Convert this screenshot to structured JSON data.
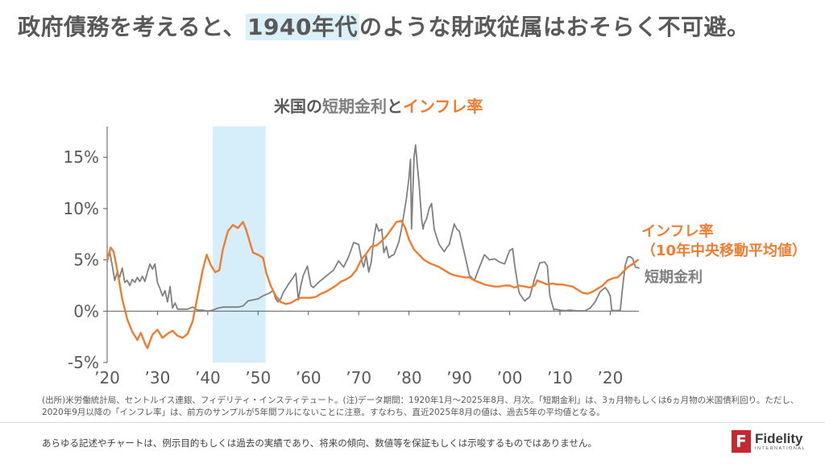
{
  "headline": {
    "prefix": "政府債務を考えると、",
    "highlight": "1940年代",
    "suffix": "のような財政従属はおそらく不可避。"
  },
  "chart_title": {
    "part1": "米国の",
    "part2": "短期金利",
    "part3": "と",
    "part4": "インフレ率"
  },
  "legend": {
    "inflation_line1": "インフレ率",
    "inflation_line2": "（10年中央移動平均値）",
    "short_rate": "短期金利"
  },
  "notes": "(出所)米労働統計局、セントルイス連銀、フィデリティ・インスティテュート。(注)データ期間：1920年1月～2025年8月、月次。「短期金利」は、3ヵ月物もしくは6ヵ月物の米国債利回り。ただし、2020年9月以降の「インフレ率」は、前方のサンプルが5年間フルにないことに注意。すなわち、直近2025年8月の値は、過去5年の平均値となる。",
  "disclaimer": "あらゆる記述やチャートは、例示目的もしくは過去の実績であり、将来の傾向、数値等を保証もしくは示唆するものではありません。",
  "logo": {
    "word": "Fidelity",
    "sub": "INTERNATIONAL",
    "mark": "F"
  },
  "colors": {
    "inflation": "#ed7d31",
    "short_rate": "#808080",
    "highlight": "#d6eefa",
    "axis": "#595959"
  },
  "chart_data": {
    "type": "line",
    "xlim": [
      1920,
      2025.7
    ],
    "ylim": [
      -5,
      18
    ],
    "y_ticks": [
      -5,
      0,
      5,
      10,
      15
    ],
    "y_tick_labels": [
      "-5%",
      "0%",
      "5%",
      "10%",
      "15%"
    ],
    "x_ticks": [
      1920,
      1930,
      1940,
      1950,
      1960,
      1970,
      1980,
      1990,
      2000,
      2010,
      2020
    ],
    "x_tick_labels": [
      "’20",
      "’30",
      "’40",
      "’50",
      "’60",
      "’70",
      "’80",
      "’90",
      "’00",
      "’10",
      "’20"
    ],
    "highlight_band": [
      1941,
      1951.5
    ],
    "series": [
      {
        "name": "インフレ率（10年中央移動平均値）",
        "color": "#ed7d31",
        "points": [
          [
            1920,
            5.0
          ],
          [
            1920.7,
            6.2
          ],
          [
            1921.3,
            5.8
          ],
          [
            1922,
            4.0
          ],
          [
            1923,
            1.2
          ],
          [
            1924,
            -0.8
          ],
          [
            1925,
            -2.0
          ],
          [
            1926,
            -2.8
          ],
          [
            1926.7,
            -2.1
          ],
          [
            1927.5,
            -3.1
          ],
          [
            1928,
            -3.6
          ],
          [
            1929,
            -2.3
          ],
          [
            1930,
            -1.8
          ],
          [
            1931,
            -2.6
          ],
          [
            1932,
            -2.2
          ],
          [
            1933,
            -1.9
          ],
          [
            1934,
            -2.4
          ],
          [
            1935,
            -2.6
          ],
          [
            1936,
            -2.2
          ],
          [
            1937,
            -1.0
          ],
          [
            1938,
            1.5
          ],
          [
            1939,
            4.0
          ],
          [
            1939.8,
            5.5
          ],
          [
            1940.6,
            4.5
          ],
          [
            1941.5,
            3.8
          ],
          [
            1942.3,
            4.0
          ],
          [
            1943,
            6.0
          ],
          [
            1944,
            7.8
          ],
          [
            1945,
            8.4
          ],
          [
            1946,
            8.1
          ],
          [
            1947,
            8.7
          ],
          [
            1947.6,
            8.0
          ],
          [
            1948.5,
            6.5
          ],
          [
            1949,
            5.7
          ],
          [
            1950,
            5.5
          ],
          [
            1951,
            5.2
          ],
          [
            1951.6,
            3.8
          ],
          [
            1952.5,
            2.5
          ],
          [
            1953.5,
            1.5
          ],
          [
            1954.5,
            0.9
          ],
          [
            1955.5,
            0.7
          ],
          [
            1956.5,
            0.8
          ],
          [
            1957.5,
            1.1
          ],
          [
            1958.5,
            1.3
          ],
          [
            1959.5,
            1.3
          ],
          [
            1960.5,
            1.3
          ],
          [
            1961.5,
            1.4
          ],
          [
            1962.5,
            1.7
          ],
          [
            1963.5,
            1.9
          ],
          [
            1964.5,
            2.2
          ],
          [
            1965.5,
            2.5
          ],
          [
            1966.5,
            2.9
          ],
          [
            1967.5,
            3.1
          ],
          [
            1968.5,
            3.4
          ],
          [
            1969.5,
            4.0
          ],
          [
            1970.5,
            5.0
          ],
          [
            1971.5,
            5.6
          ],
          [
            1972.5,
            6.3
          ],
          [
            1973.5,
            6.4
          ],
          [
            1974.5,
            6.8
          ],
          [
            1975.5,
            7.3
          ],
          [
            1976.5,
            8.0
          ],
          [
            1977.5,
            8.7
          ],
          [
            1978.5,
            8.8
          ],
          [
            1979.2,
            8.2
          ],
          [
            1980,
            7.0
          ],
          [
            1981,
            6.0
          ],
          [
            1982,
            5.5
          ],
          [
            1983,
            5.0
          ],
          [
            1984,
            4.7
          ],
          [
            1985,
            4.5
          ],
          [
            1986,
            4.3
          ],
          [
            1987,
            4.0
          ],
          [
            1988,
            3.7
          ],
          [
            1989,
            3.5
          ],
          [
            1990,
            3.4
          ],
          [
            1991,
            3.3
          ],
          [
            1992,
            3.3
          ],
          [
            1993,
            3.0
          ],
          [
            1994,
            2.8
          ],
          [
            1995,
            2.6
          ],
          [
            1996,
            2.5
          ],
          [
            1997,
            2.4
          ],
          [
            1998,
            2.4
          ],
          [
            1999,
            2.5
          ],
          [
            2000,
            2.5
          ],
          [
            2001,
            2.3
          ],
          [
            2002,
            2.5
          ],
          [
            2003,
            2.4
          ],
          [
            2004,
            2.3
          ],
          [
            2005,
            2.5
          ],
          [
            2005.5,
            3.0
          ],
          [
            2006.5,
            2.8
          ],
          [
            2007.5,
            2.6
          ],
          [
            2008.5,
            2.7
          ],
          [
            2009.5,
            2.6
          ],
          [
            2010.5,
            2.6
          ],
          [
            2011.5,
            2.5
          ],
          [
            2012.5,
            2.4
          ],
          [
            2013.5,
            2.1
          ],
          [
            2014.5,
            1.8
          ],
          [
            2015.5,
            1.7
          ],
          [
            2016.5,
            1.9
          ],
          [
            2017.5,
            2.2
          ],
          [
            2018.5,
            2.5
          ],
          [
            2019.5,
            3.0
          ],
          [
            2020.5,
            3.2
          ],
          [
            2021.5,
            3.3
          ],
          [
            2022.5,
            3.8
          ],
          [
            2023.5,
            4.3
          ],
          [
            2024.5,
            4.6
          ],
          [
            2025.5,
            5.0
          ]
        ]
      },
      {
        "name": "短期金利",
        "color": "#808080",
        "points": [
          [
            1920,
            4.8
          ],
          [
            1920.5,
            5.8
          ],
          [
            1921,
            4.5
          ],
          [
            1921.5,
            3.0
          ],
          [
            1922,
            3.8
          ],
          [
            1922.5,
            3.3
          ],
          [
            1923,
            4.2
          ],
          [
            1923.5,
            2.8
          ],
          [
            1924,
            3.0
          ],
          [
            1924.5,
            2.5
          ],
          [
            1925,
            3.1
          ],
          [
            1925.5,
            2.8
          ],
          [
            1926,
            3.3
          ],
          [
            1926.5,
            2.9
          ],
          [
            1927,
            3.4
          ],
          [
            1927.5,
            2.9
          ],
          [
            1928,
            3.8
          ],
          [
            1928.5,
            4.6
          ],
          [
            1929,
            4.1
          ],
          [
            1929.5,
            4.6
          ],
          [
            1930,
            2.8
          ],
          [
            1930.5,
            2.2
          ],
          [
            1931,
            1.5
          ],
          [
            1931.5,
            2.0
          ],
          [
            1932,
            0.9
          ],
          [
            1932.5,
            2.4
          ],
          [
            1933,
            0.3
          ],
          [
            1933.5,
            0.8
          ],
          [
            1934,
            0.2
          ],
          [
            1935,
            0.2
          ],
          [
            1936,
            0.2
          ],
          [
            1937,
            0.4
          ],
          [
            1938,
            0.1
          ],
          [
            1939,
            0.1
          ],
          [
            1940,
            0.0
          ],
          [
            1941,
            0.1
          ],
          [
            1942,
            0.3
          ],
          [
            1943,
            0.4
          ],
          [
            1944,
            0.4
          ],
          [
            1945,
            0.4
          ],
          [
            1946,
            0.4
          ],
          [
            1947,
            0.5
          ],
          [
            1948,
            1.0
          ],
          [
            1949,
            1.1
          ],
          [
            1950,
            1.2
          ],
          [
            1951,
            1.5
          ],
          [
            1952,
            1.7
          ],
          [
            1953,
            2.0
          ],
          [
            1953.5,
            1.2
          ],
          [
            1954,
            0.9
          ],
          [
            1954.5,
            1.2
          ],
          [
            1955,
            1.8
          ],
          [
            1956,
            2.6
          ],
          [
            1957,
            3.3
          ],
          [
            1957.5,
            3.7
          ],
          [
            1958,
            1.1
          ],
          [
            1958.5,
            2.5
          ],
          [
            1959,
            3.5
          ],
          [
            1959.8,
            4.4
          ],
          [
            1960.5,
            2.5
          ],
          [
            1961,
            2.3
          ],
          [
            1962,
            2.8
          ],
          [
            1963,
            3.2
          ],
          [
            1964,
            3.6
          ],
          [
            1965,
            4.0
          ],
          [
            1966,
            4.9
          ],
          [
            1967,
            4.3
          ],
          [
            1968,
            5.3
          ],
          [
            1969,
            6.7
          ],
          [
            1970,
            6.5
          ],
          [
            1970.6,
            4.9
          ],
          [
            1971,
            4.3
          ],
          [
            1971.5,
            5.4
          ],
          [
            1972,
            3.8
          ],
          [
            1972.5,
            4.8
          ],
          [
            1973,
            7.0
          ],
          [
            1973.5,
            8.5
          ],
          [
            1974,
            7.8
          ],
          [
            1974.6,
            8.0
          ],
          [
            1975,
            5.7
          ],
          [
            1975.5,
            6.3
          ],
          [
            1976,
            5.2
          ],
          [
            1976.5,
            5.4
          ],
          [
            1977,
            5.5
          ],
          [
            1977.5,
            6.1
          ],
          [
            1978,
            6.8
          ],
          [
            1978.5,
            8.0
          ],
          [
            1979,
            9.5
          ],
          [
            1979.5,
            11.0
          ],
          [
            1980,
            13.0
          ],
          [
            1980.3,
            14.8
          ],
          [
            1980.5,
            8.0
          ],
          [
            1980.8,
            12.0
          ],
          [
            1981,
            15.0
          ],
          [
            1981.3,
            16.2
          ],
          [
            1981.6,
            14.5
          ],
          [
            1982,
            12.5
          ],
          [
            1982.5,
            9.0
          ],
          [
            1982.8,
            8.0
          ],
          [
            1983,
            8.5
          ],
          [
            1983.5,
            9.0
          ],
          [
            1984,
            10.0
          ],
          [
            1984.5,
            10.5
          ],
          [
            1985,
            8.0
          ],
          [
            1985.5,
            7.2
          ],
          [
            1986,
            6.5
          ],
          [
            1987,
            5.8
          ],
          [
            1987.5,
            6.2
          ],
          [
            1988,
            6.5
          ],
          [
            1989,
            8.5
          ],
          [
            1989.5,
            8.0
          ],
          [
            1990,
            7.8
          ],
          [
            1991,
            5.7
          ],
          [
            1992,
            3.5
          ],
          [
            1993,
            3.0
          ],
          [
            1994,
            4.3
          ],
          [
            1995,
            5.5
          ],
          [
            1996,
            5.0
          ],
          [
            1997,
            5.1
          ],
          [
            1998,
            4.8
          ],
          [
            1999,
            4.6
          ],
          [
            2000,
            5.9
          ],
          [
            2000.6,
            6.1
          ],
          [
            2001,
            4.5
          ],
          [
            2001.8,
            2.0
          ],
          [
            2002,
            1.7
          ],
          [
            2003,
            1.0
          ],
          [
            2004,
            1.4
          ],
          [
            2005,
            3.2
          ],
          [
            2006,
            4.7
          ],
          [
            2007,
            4.8
          ],
          [
            2007.5,
            4.4
          ],
          [
            2008,
            1.5
          ],
          [
            2008.8,
            0.1
          ],
          [
            2009,
            0.2
          ],
          [
            2010,
            0.1
          ],
          [
            2011,
            0.05
          ],
          [
            2012,
            0.1
          ],
          [
            2013,
            0.05
          ],
          [
            2014,
            0.03
          ],
          [
            2015,
            0.05
          ],
          [
            2016,
            0.3
          ],
          [
            2017,
            0.9
          ],
          [
            2018,
            1.9
          ],
          [
            2019,
            2.3
          ],
          [
            2019.5,
            2.0
          ],
          [
            2020,
            1.5
          ],
          [
            2020.3,
            0.1
          ],
          [
            2021,
            0.05
          ],
          [
            2022,
            0.1
          ],
          [
            2022.5,
            2.5
          ],
          [
            2023,
            4.5
          ],
          [
            2023.5,
            5.3
          ],
          [
            2024,
            5.3
          ],
          [
            2024.5,
            5.1
          ],
          [
            2025,
            4.3
          ],
          [
            2025.7,
            4.2
          ]
        ]
      }
    ]
  }
}
